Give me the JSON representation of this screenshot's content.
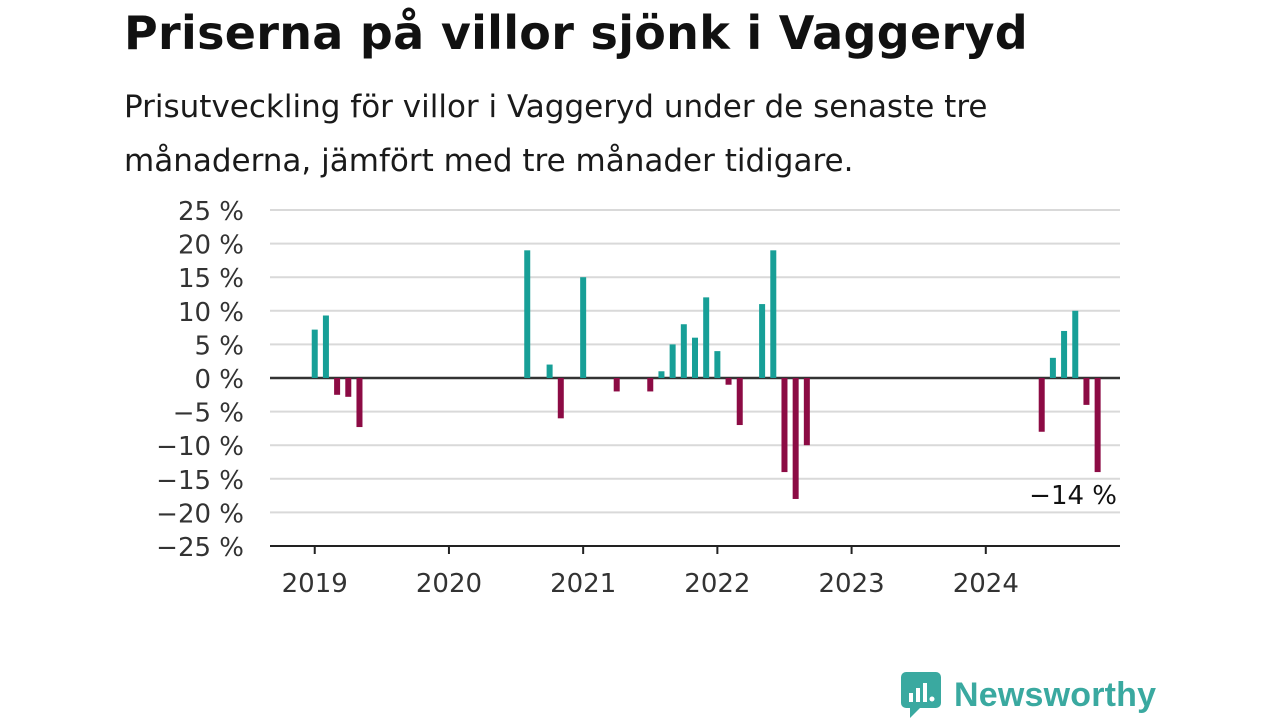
{
  "header": {
    "title": "Priserna på villor sjönk i Vaggeryd",
    "subtitle": "Prisutveckling för villor i Vaggeryd under de senaste tre månaderna, jämfört med tre månader tidigare."
  },
  "brand": {
    "name": "Newsworthy",
    "icon": "newsworthy-logo-icon",
    "color": "#3aa9a0"
  },
  "chart_data": {
    "type": "bar",
    "title": "Priserna på villor sjönk i Vaggeryd",
    "subtitle": "Prisutveckling för villor i Vaggeryd under de senaste tre månaderna, jämfört med tre månader tidigare.",
    "x_ticks": [
      "2019",
      "2020",
      "2021",
      "2022",
      "2023",
      "2024"
    ],
    "y_ticks": [
      "25 %",
      "20 %",
      "15 %",
      "10 %",
      "5 %",
      "0 %",
      "−5 %",
      "−10 %",
      "−15 %",
      "−20 %",
      "−25 %"
    ],
    "ylim": [
      -25,
      25
    ],
    "xlim": [
      "2018-09",
      "2025-01"
    ],
    "grid": true,
    "colors": {
      "positive": "#179f97",
      "negative": "#8c0b44"
    },
    "annotation": {
      "text": "−14 %",
      "date": "2024-11"
    },
    "x": [
      "2019-01",
      "2019-02",
      "2019-03",
      "2019-04",
      "2019-05",
      "2020-08",
      "2020-10",
      "2020-11",
      "2021-01",
      "2021-04",
      "2021-07",
      "2021-08",
      "2021-09",
      "2021-10",
      "2021-11",
      "2021-12",
      "2022-01",
      "2022-02",
      "2022-03",
      "2022-05",
      "2022-06",
      "2022-07",
      "2022-08",
      "2022-09",
      "2024-06",
      "2024-07",
      "2024-08",
      "2024-09",
      "2024-10",
      "2024-11"
    ],
    "values": [
      7.2,
      9.3,
      -2.5,
      -2.8,
      -7.3,
      19,
      2,
      -6,
      15,
      -2,
      -2,
      1,
      5,
      8,
      6,
      12,
      4,
      -1,
      -7,
      11,
      19,
      -14,
      -18,
      -10,
      -8,
      3,
      7,
      10,
      -4,
      -14
    ]
  }
}
